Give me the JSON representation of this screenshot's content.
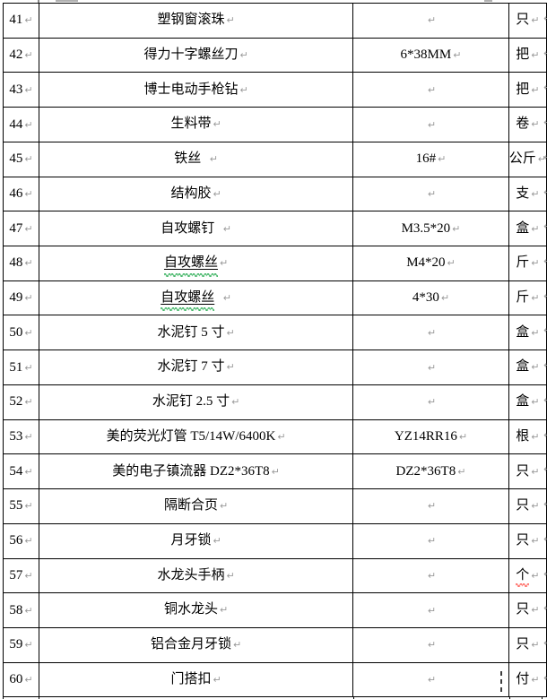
{
  "marks": {
    "paragraph_mark": "↵"
  },
  "colors": {
    "page_bg": "#ffffff",
    "grid": "#000000",
    "text": "#000000",
    "paragraph_mark": "#9a9a9a",
    "squiggle_green": "#2fae57",
    "squiggle_red": "#ff5a52"
  },
  "rows": [
    {
      "no": "41",
      "name": "塑钢窗滚珠",
      "name_pad": "",
      "spec": "",
      "unit": "只"
    },
    {
      "no": "42",
      "name": "得力十字螺丝刀",
      "name_pad": "",
      "spec": "6*38MM",
      "unit": "把"
    },
    {
      "no": "43",
      "name": "博士电动手枪钻",
      "name_pad": "",
      "spec": "",
      "unit": "把"
    },
    {
      "no": "44",
      "name": "生料带",
      "name_pad": "",
      "spec": "",
      "unit": "卷"
    },
    {
      "no": "45",
      "name": "铁丝",
      "name_pad": "  ",
      "spec": "16#",
      "unit": "公斤"
    },
    {
      "no": "46",
      "name": "结构胶",
      "name_pad": "",
      "spec": "",
      "unit": "支"
    },
    {
      "no": "47",
      "name": "自攻螺钉",
      "name_pad": "  ",
      "spec": "M3.5*20",
      "unit": "盒"
    },
    {
      "no": "48",
      "name": "自攻螺丝",
      "name_pad": "",
      "spec": "M4*20",
      "unit": "斤",
      "name_style": "squiggle-green-underline"
    },
    {
      "no": "49",
      "name": "自攻螺丝",
      "name_pad": "  ",
      "spec": "4*30",
      "unit": "斤",
      "name_style": "squiggle-green-underline"
    },
    {
      "no": "50",
      "name": "水泥钉 5 寸",
      "name_pad": "",
      "spec": "",
      "unit": "盒"
    },
    {
      "no": "51",
      "name": "水泥钉 7 寸",
      "name_pad": "",
      "spec": "",
      "unit": "盒"
    },
    {
      "no": "52",
      "name": "水泥钉 2.5 寸",
      "name_pad": "",
      "spec": "",
      "unit": "盒"
    },
    {
      "no": "53",
      "name": "美的荧光灯管 T5/14W/6400K",
      "name_pad": "",
      "spec": "YZ14RR16",
      "unit": "根"
    },
    {
      "no": "54",
      "name": "美的电子镇流器 DZ2*36T8",
      "name_pad": "",
      "spec": "DZ2*36T8",
      "unit": "只"
    },
    {
      "no": "55",
      "name": "隔断合页",
      "name_pad": "",
      "spec": "",
      "unit": "只"
    },
    {
      "no": "56",
      "name": "月牙锁",
      "name_pad": "",
      "spec": "",
      "unit": "只"
    },
    {
      "no": "57",
      "name": "水龙头手柄",
      "name_pad": "",
      "spec": "",
      "unit": "个",
      "unit_style": "squiggle-red"
    },
    {
      "no": "58",
      "name": "铜水龙头",
      "name_pad": "",
      "spec": "",
      "unit": "只"
    },
    {
      "no": "59",
      "name": "铝合金月牙锁",
      "name_pad": "",
      "spec": "",
      "unit": "只"
    },
    {
      "no": "60",
      "name": "门搭扣",
      "name_pad": "",
      "spec": "",
      "unit": "付"
    }
  ]
}
